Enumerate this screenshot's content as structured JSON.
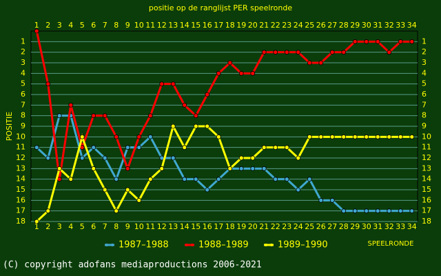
{
  "chart_data": {
    "type": "line",
    "title": "positie op de ranglijst PER speelronde",
    "y_label": "POSITIE",
    "x_label": "SPEELRONDE",
    "footer": "(C) copyright adofans mediaproductions 2006-2021",
    "x": [
      1,
      2,
      3,
      4,
      5,
      6,
      7,
      8,
      9,
      10,
      11,
      12,
      13,
      14,
      15,
      16,
      17,
      18,
      19,
      20,
      21,
      22,
      23,
      24,
      25,
      26,
      27,
      28,
      29,
      30,
      31,
      32,
      33,
      34
    ],
    "xlim": [
      0.5,
      34.5
    ],
    "ylim": [
      0,
      18
    ],
    "yticks": [
      1,
      2,
      3,
      4,
      5,
      6,
      7,
      8,
      9,
      10,
      11,
      12,
      13,
      14,
      15,
      16,
      17,
      18
    ],
    "y_reversed": true,
    "grid": true,
    "series": [
      {
        "name": "1987–1988",
        "color": "#40a8d0",
        "values": [
          11,
          12,
          8,
          8,
          12,
          11,
          12,
          14,
          11,
          11,
          10,
          12,
          12,
          14,
          14,
          15,
          14,
          13,
          13,
          13,
          13,
          14,
          14,
          15,
          14,
          16,
          16,
          17,
          17,
          17,
          17,
          17,
          17,
          17
        ]
      },
      {
        "name": "1988–1989",
        "color": "#ff0000",
        "values": [
          0,
          5,
          14,
          7,
          11,
          8,
          8,
          10,
          13,
          10,
          8,
          5,
          5,
          7,
          8,
          6,
          4,
          3,
          4,
          4,
          2,
          2,
          2,
          2,
          3,
          3,
          2,
          2,
          1,
          1,
          1,
          2,
          1,
          1
        ]
      },
      {
        "name": "1989–1990",
        "color": "#ffff00",
        "values": [
          18,
          17,
          13,
          14,
          10,
          13,
          15,
          17,
          15,
          16,
          14,
          13,
          9,
          11,
          9,
          9,
          10,
          13,
          12,
          12,
          11,
          11,
          11,
          12,
          10,
          10,
          10,
          10,
          10,
          10,
          10,
          10,
          10,
          10
        ]
      }
    ]
  }
}
